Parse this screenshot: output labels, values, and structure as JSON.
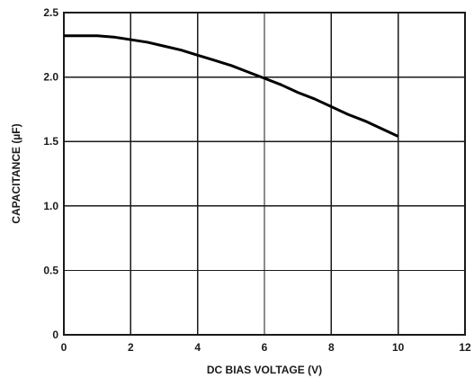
{
  "chart_data": {
    "type": "line",
    "title": "",
    "xlabel": "DC BIAS VOLTAGE (V)",
    "ylabel": "CAPACITANCE (µF)",
    "xlim": [
      0,
      12
    ],
    "ylim": [
      0,
      2.5
    ],
    "x_ticks": [
      "0",
      "2",
      "4",
      "6",
      "8",
      "10",
      "12"
    ],
    "y_ticks": [
      "0",
      "0.5",
      "1.0",
      "1.5",
      "2.0",
      "2.5"
    ],
    "grid": true,
    "legend": "none",
    "line_color": "#000000",
    "series": [
      {
        "x": [
          0,
          0.5,
          1,
          1.5,
          2,
          2.5,
          3,
          3.5,
          4,
          4.5,
          5,
          5.5,
          6,
          6.5,
          7,
          7.5,
          8,
          8.5,
          9,
          9.5,
          10
        ],
        "y": [
          2.32,
          2.32,
          2.32,
          2.31,
          2.29,
          2.27,
          2.24,
          2.21,
          2.17,
          2.13,
          2.09,
          2.04,
          1.99,
          1.94,
          1.88,
          1.83,
          1.77,
          1.71,
          1.66,
          1.6,
          1.54
        ]
      }
    ]
  }
}
